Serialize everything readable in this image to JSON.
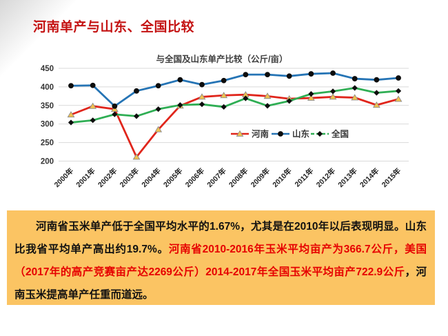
{
  "slide": {
    "title": "河南单产与山东、全国比较"
  },
  "note": {
    "black_part_1": "河南省玉米单产低于全国平均水平的1.67%，尤其是在2010年以后表现明显。山东比我省平均单产高出约19.7%。",
    "red_part": "河南省2010-2016年玉米平均亩产为366.7公斤，美国（2017年的高产竞赛亩产达2269公斤）2014-2017年全国玉米平均亩产722.9公斤",
    "black_part_2": "，河南玉米提高单产任重而道远。",
    "background_color": "#fbc463",
    "red_color": "#e60000"
  },
  "chart_data": {
    "type": "line",
    "title": "与全国及山东单产比较（公斤/亩）",
    "xlabel": "",
    "ylabel": "",
    "ylim": [
      200,
      450
    ],
    "yticks": [
      200,
      250,
      300,
      350,
      400,
      450
    ],
    "grid": "horizontal-only",
    "grid_color": "#d9d9d9",
    "legend_position": "inside-center-right",
    "categories": [
      "2000年",
      "2001年",
      "2002年",
      "2003年",
      "2004年",
      "2005年",
      "2006年",
      "2007年",
      "2008年",
      "2009年",
      "2010年",
      "2011年",
      "2012年",
      "2013年",
      "2014年",
      "2015年"
    ],
    "series": [
      {
        "key": "henan",
        "name": "河南",
        "color": "#e0251b",
        "marker": "triangle",
        "marker_fill": "#f3c14d",
        "legend_dash": "",
        "values": [
          325,
          348,
          340,
          211,
          285,
          349,
          373,
          377,
          379,
          375,
          368,
          370,
          373,
          371,
          351,
          367
        ]
      },
      {
        "key": "shandong",
        "name": "山东",
        "color": "#2574b5",
        "marker": "circle",
        "marker_fill": "#0d0d0d",
        "legend_dash": "",
        "values": [
          403,
          404,
          348,
          389,
          403,
          419,
          406,
          417,
          433,
          433,
          429,
          435,
          437,
          422,
          419,
          424
        ]
      },
      {
        "key": "quanguo",
        "name": "全国",
        "color": "#2fae54",
        "marker": "diamond",
        "marker_fill": "#0d0d0d",
        "legend_dash": "5,3",
        "values": [
          304,
          310,
          326,
          321,
          340,
          351,
          353,
          346,
          369,
          349,
          362,
          381,
          388,
          397,
          384,
          389
        ]
      }
    ]
  }
}
